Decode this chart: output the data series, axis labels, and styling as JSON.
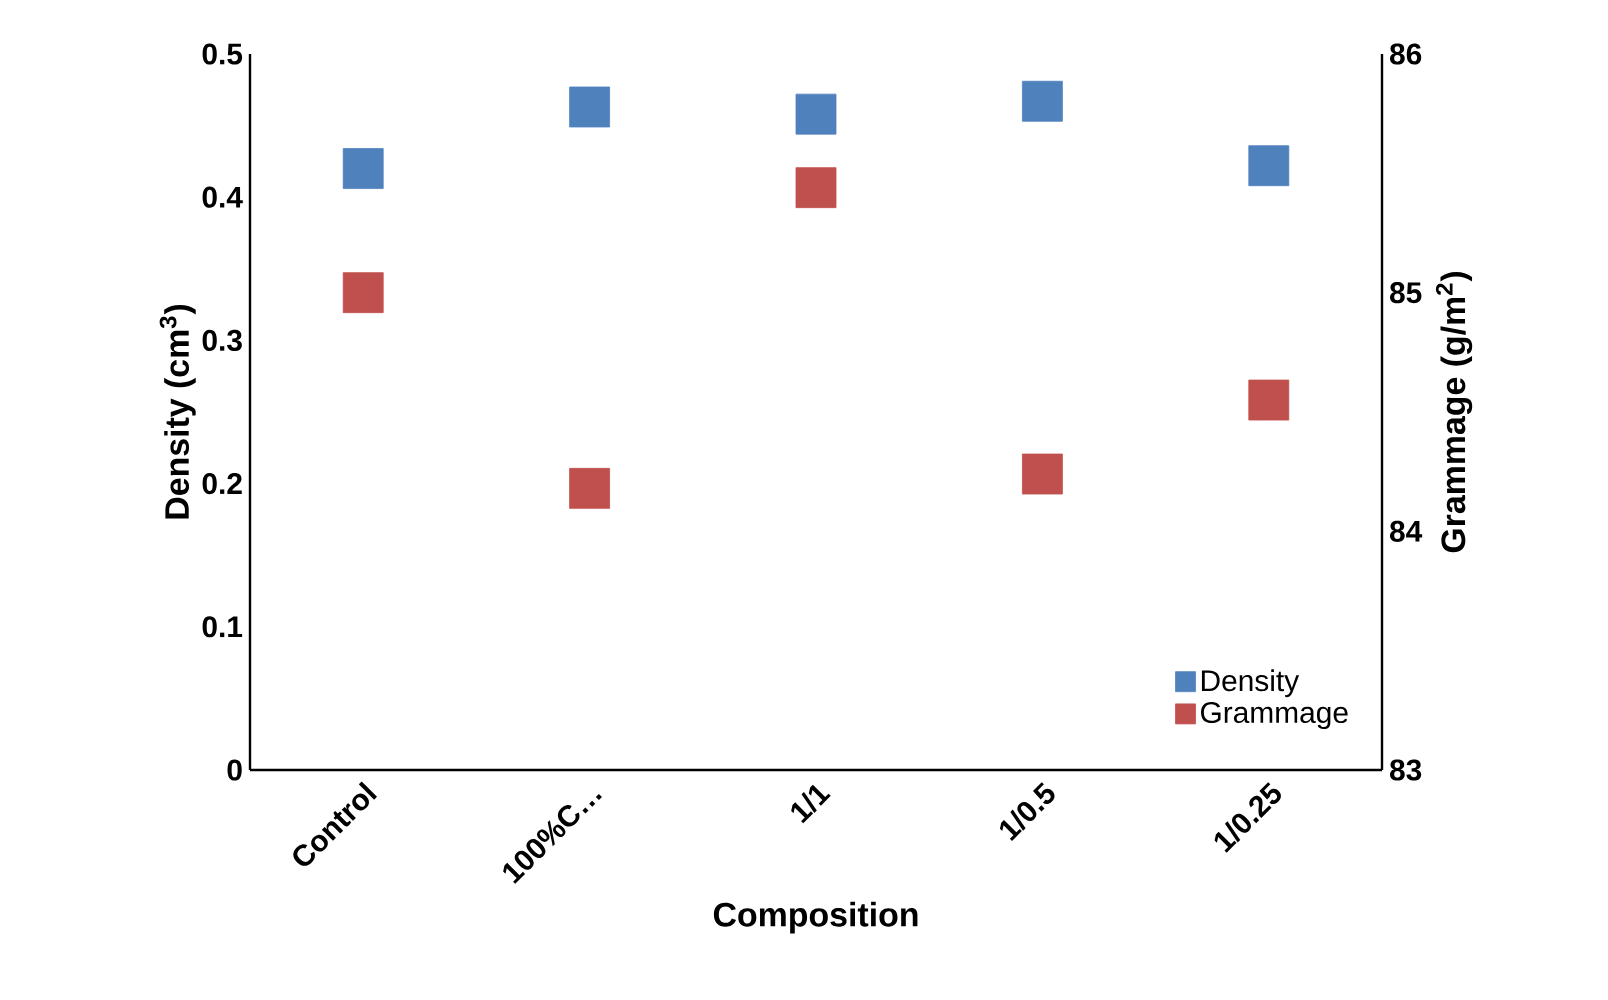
{
  "chart_data": {
    "type": "scatter",
    "xlabel": "Composition",
    "ylabel": "Density (cm$^{3}$)",
    "y2label": "Grammage (g/m$^{2}$)",
    "categories": [
      "Control",
      "100%C…",
      "1/1",
      "1/0.5",
      "1/0.25"
    ],
    "series": [
      {
        "name": "Density",
        "color": "#4f81bd",
        "values": [
          0.42,
          0.463,
          0.458,
          0.467,
          0.422
        ]
      },
      {
        "name": "Grammage",
        "color": "#c0504d",
        "axis": "y2",
        "values": [
          85.0,
          84.18,
          85.44,
          84.24,
          84.55
        ]
      }
    ],
    "ylim": [
      0,
      0.5
    ],
    "yticks": [
      0,
      0.1,
      0.2,
      0.3,
      0.4,
      0.5
    ],
    "y2lim": [
      83,
      86
    ],
    "y2ticks": [
      83,
      84,
      85,
      86
    ],
    "marker": "square",
    "legend": "bottom right",
    "grid": false
  }
}
